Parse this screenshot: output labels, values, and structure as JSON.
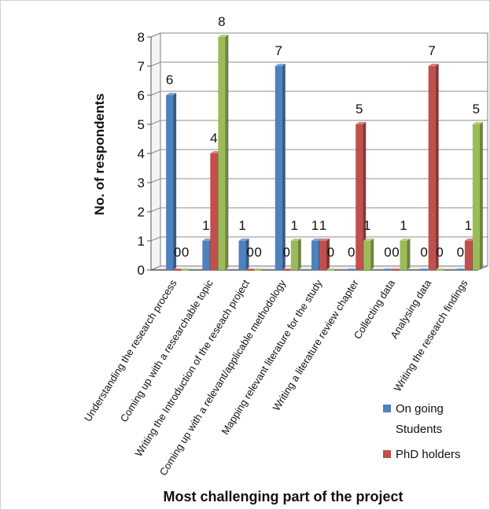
{
  "chart_data": {
    "type": "bar",
    "title": "",
    "xlabel": "Most challenging part of the project",
    "ylabel": "No. of respondents",
    "ylim": [
      0,
      8
    ],
    "yticks": [
      "0",
      "1",
      "2",
      "3",
      "4",
      "5",
      "6",
      "7",
      "8"
    ],
    "grid": true,
    "three_d": true,
    "legend_position": "bottom-right",
    "categories": [
      "Understanding the research process",
      "Coming up with a researchable topic",
      "Writing the Introduction of the reseach project",
      "Coming up with a relevant/applicable methodology",
      "Mapping relevant literature for the study",
      "Writing a literature review chapter",
      "Collecting data",
      "Analysing data",
      "Writing the research findings"
    ],
    "series": [
      {
        "name": "On going Students",
        "color": "#4f81bd",
        "values": [
          6,
          1,
          1,
          7,
          1,
          0,
          0,
          0,
          0
        ]
      },
      {
        "name": "PhD holders",
        "color": "#c0504d",
        "values": [
          0,
          4,
          0,
          0,
          1,
          5,
          0,
          7,
          1
        ]
      },
      {
        "name": "",
        "color": "#9bbb59",
        "values": [
          0,
          8,
          0,
          1,
          0,
          1,
          1,
          0,
          5
        ]
      }
    ]
  }
}
